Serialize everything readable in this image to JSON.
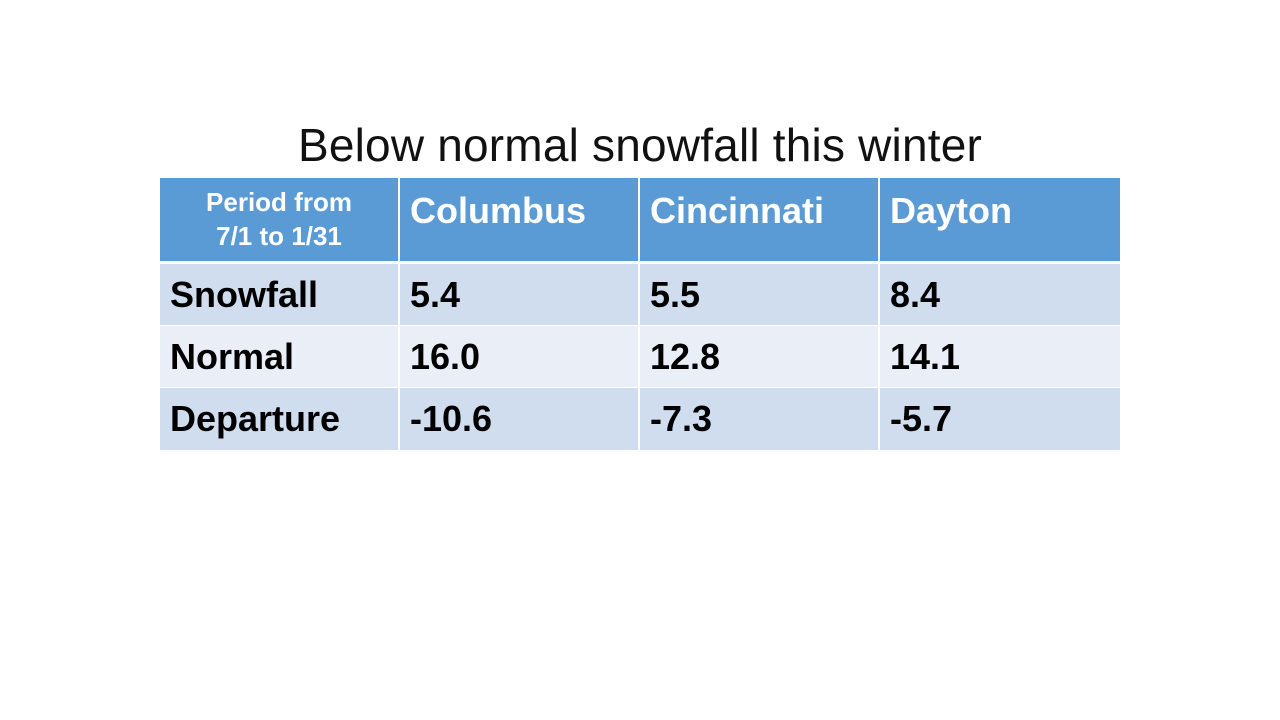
{
  "slide": {
    "title": "Below normal snowfall this winter"
  },
  "table": {
    "corner_line1": "Period from",
    "corner_line2": "7/1 to 1/31",
    "columns": [
      "Columbus",
      "Cincinnati",
      "Dayton"
    ],
    "rows": [
      {
        "label": "Snowfall",
        "values": [
          "5.4",
          "5.5",
          "8.4"
        ]
      },
      {
        "label": "Normal",
        "values": [
          "16.0",
          "12.8",
          "14.1"
        ]
      },
      {
        "label": "Departure",
        "values": [
          "-10.6",
          "-7.3",
          "-5.7"
        ]
      }
    ]
  },
  "colors": {
    "header_background": "#5b9bd5",
    "row_band_dark": "#cfddee",
    "row_band_light": "#e9eef7"
  }
}
